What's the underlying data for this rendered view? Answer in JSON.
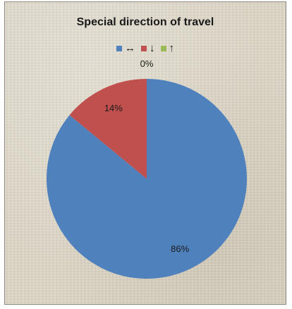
{
  "chart_data": {
    "type": "pie",
    "title": "Special direction of travel",
    "legend_position": "top",
    "categories": [
      "↔",
      "↓",
      "↑"
    ],
    "values": [
      86,
      14,
      0
    ],
    "data_labels": [
      "86%",
      "14%",
      "0%"
    ],
    "colors": [
      "#4f81bd",
      "#c0504d",
      "#9bbb59"
    ],
    "start_angle_deg": 0,
    "direction": "clockwise"
  }
}
